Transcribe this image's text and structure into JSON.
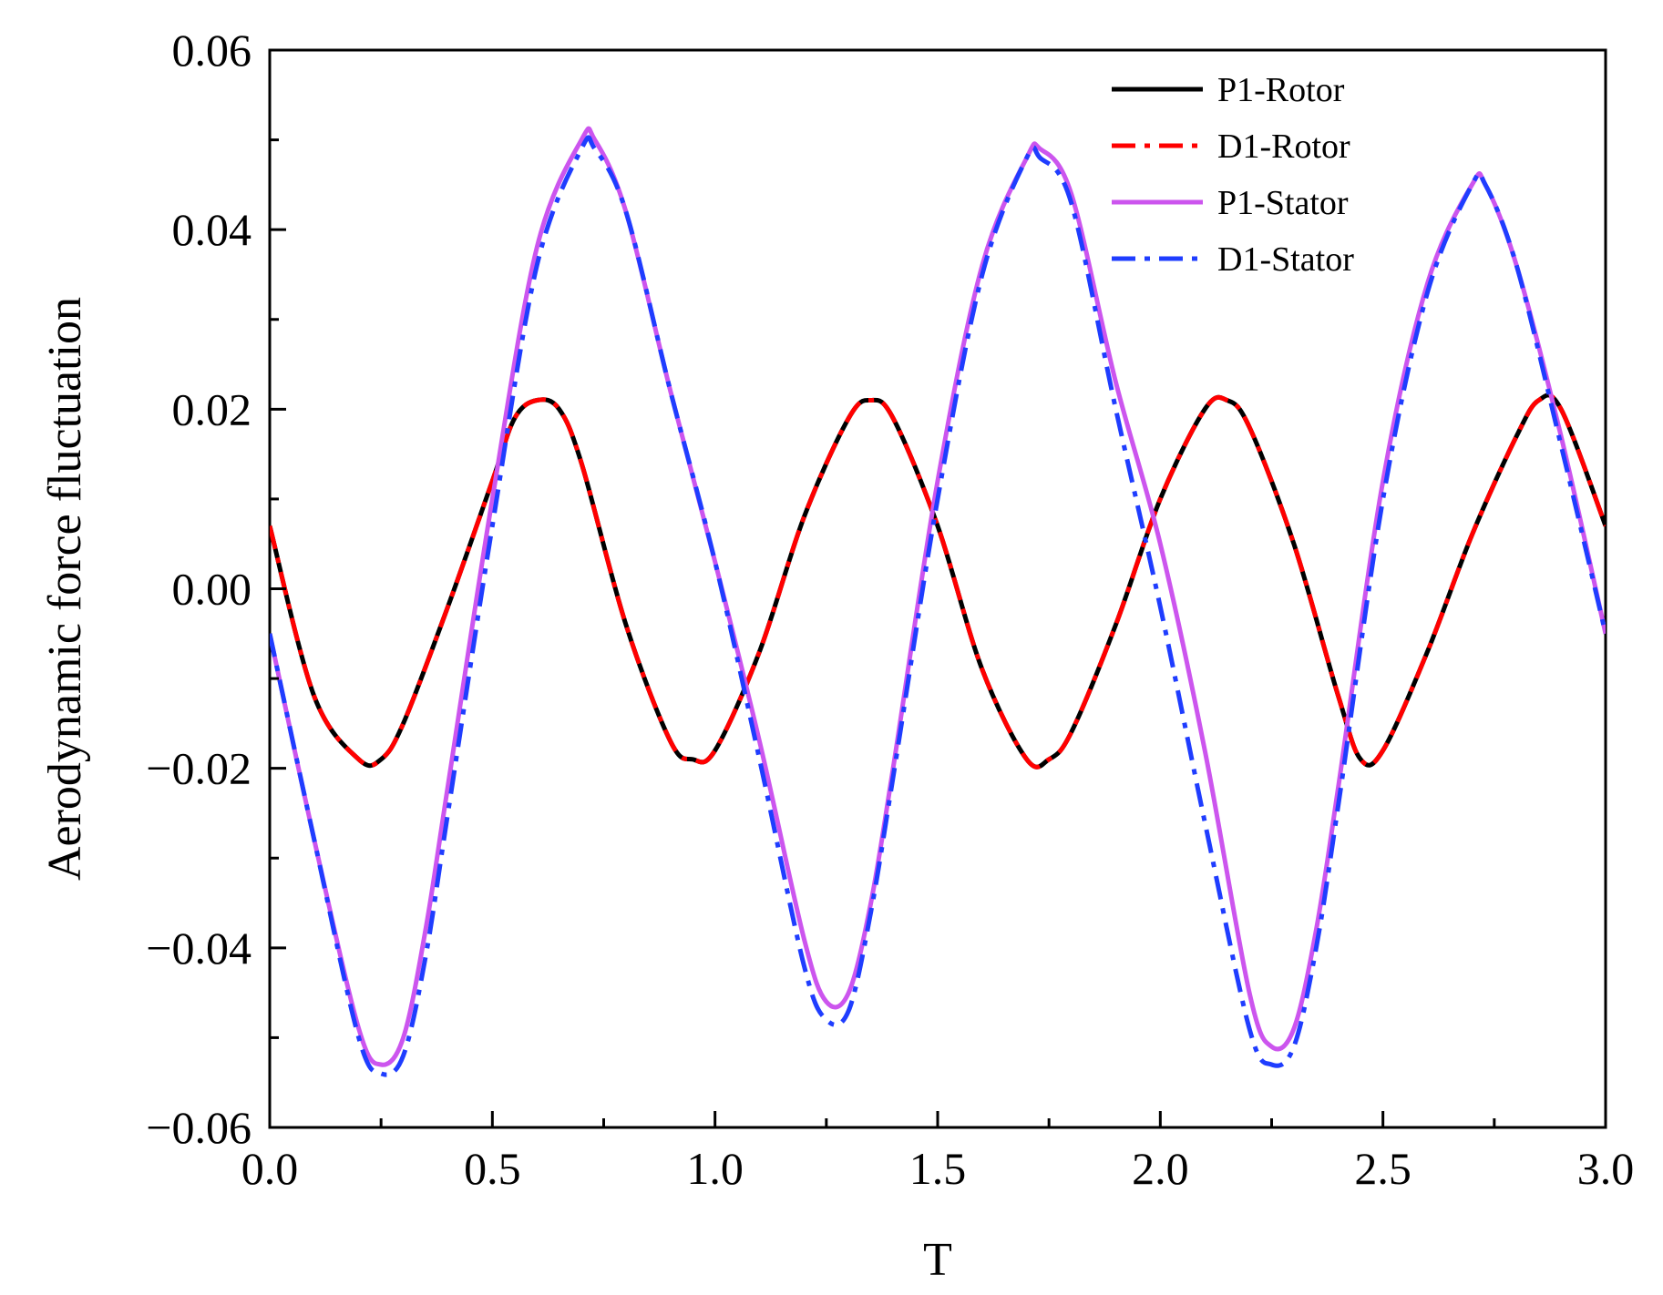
{
  "chart_data": {
    "type": "line",
    "title": "",
    "xlabel": "T",
    "ylabel": "Aerodynamic force fluctuation",
    "xlim": [
      0,
      3.0
    ],
    "ylim": [
      -0.06,
      0.06
    ],
    "x_ticks": [
      0.0,
      0.5,
      1.0,
      1.5,
      2.0,
      2.5,
      3.0
    ],
    "x_tick_labels": [
      "0.0",
      "0.5",
      "1.0",
      "1.5",
      "2.0",
      "2.5",
      "3.0"
    ],
    "y_ticks": [
      -0.06,
      -0.04,
      -0.02,
      0.0,
      0.02,
      0.04,
      0.06
    ],
    "y_tick_labels": [
      "−0.06",
      "−0.04",
      "−0.02",
      "0.00",
      "0.02",
      "0.04",
      "0.06"
    ],
    "grid": false,
    "legend_position": "top-right",
    "series": [
      {
        "name": "P1-Rotor",
        "color": "#000000",
        "style": "solid",
        "x": [
          0.0,
          0.1,
          0.2,
          0.25,
          0.3,
          0.4,
          0.5,
          0.55,
          0.6,
          0.65,
          0.7,
          0.8,
          0.9,
          0.95,
          1.0,
          1.1,
          1.2,
          1.3,
          1.35,
          1.4,
          1.5,
          1.6,
          1.7,
          1.75,
          1.8,
          1.9,
          2.0,
          2.1,
          2.15,
          2.2,
          2.3,
          2.4,
          2.45,
          2.5,
          2.6,
          2.7,
          2.8,
          2.85,
          2.9,
          3.0
        ],
        "y": [
          0.007,
          -0.012,
          -0.019,
          -0.019,
          -0.015,
          -0.002,
          0.012,
          0.019,
          0.021,
          0.02,
          0.014,
          -0.004,
          -0.017,
          -0.019,
          -0.018,
          -0.007,
          0.008,
          0.019,
          0.021,
          0.019,
          0.007,
          -0.009,
          -0.019,
          -0.019,
          -0.016,
          -0.004,
          0.01,
          0.02,
          0.021,
          0.018,
          0.005,
          -0.012,
          -0.019,
          -0.018,
          -0.007,
          0.006,
          0.017,
          0.021,
          0.02,
          0.007
        ]
      },
      {
        "name": "D1-Rotor",
        "color": "#ff0000",
        "style": "dashdot",
        "x": [
          0.0,
          0.1,
          0.2,
          0.25,
          0.3,
          0.4,
          0.5,
          0.55,
          0.6,
          0.65,
          0.7,
          0.8,
          0.9,
          0.95,
          1.0,
          1.1,
          1.2,
          1.3,
          1.35,
          1.4,
          1.5,
          1.6,
          1.7,
          1.75,
          1.8,
          1.9,
          2.0,
          2.1,
          2.15,
          2.2,
          2.3,
          2.4,
          2.45,
          2.5,
          2.6,
          2.7,
          2.8,
          2.85,
          2.9,
          3.0
        ],
        "y": [
          0.007,
          -0.012,
          -0.019,
          -0.019,
          -0.015,
          -0.002,
          0.012,
          0.019,
          0.021,
          0.02,
          0.014,
          -0.004,
          -0.017,
          -0.019,
          -0.018,
          -0.007,
          0.008,
          0.019,
          0.021,
          0.019,
          0.007,
          -0.009,
          -0.019,
          -0.019,
          -0.016,
          -0.004,
          0.01,
          0.02,
          0.021,
          0.018,
          0.005,
          -0.012,
          -0.019,
          -0.018,
          -0.007,
          0.006,
          0.017,
          0.021,
          0.02,
          0.007
        ]
      },
      {
        "name": "P1-Stator",
        "color": "#cc55ee",
        "style": "solid",
        "x": [
          0.0,
          0.1,
          0.2,
          0.25,
          0.3,
          0.35,
          0.4,
          0.5,
          0.6,
          0.7,
          0.73,
          0.8,
          0.9,
          1.0,
          1.1,
          1.2,
          1.25,
          1.3,
          1.35,
          1.4,
          1.5,
          1.6,
          1.7,
          1.73,
          1.8,
          1.9,
          2.0,
          2.1,
          2.2,
          2.25,
          2.3,
          2.35,
          2.4,
          2.5,
          2.6,
          2.7,
          2.73,
          2.8,
          2.9,
          3.0
        ],
        "y": [
          -0.005,
          -0.028,
          -0.049,
          -0.053,
          -0.05,
          -0.038,
          -0.022,
          0.01,
          0.038,
          0.05,
          0.05,
          0.042,
          0.022,
          0.003,
          -0.017,
          -0.039,
          -0.046,
          -0.045,
          -0.035,
          -0.02,
          0.012,
          0.036,
          0.048,
          0.049,
          0.044,
          0.023,
          0.005,
          -0.018,
          -0.045,
          -0.051,
          -0.049,
          -0.038,
          -0.022,
          0.012,
          0.034,
          0.045,
          0.045,
          0.036,
          0.017,
          -0.005
        ]
      },
      {
        "name": "D1-Stator",
        "color": "#1f3dff",
        "style": "dashdot",
        "x": [
          0.0,
          0.1,
          0.2,
          0.25,
          0.3,
          0.35,
          0.4,
          0.5,
          0.6,
          0.7,
          0.73,
          0.8,
          0.9,
          1.0,
          1.1,
          1.2,
          1.25,
          1.3,
          1.35,
          1.4,
          1.5,
          1.6,
          1.7,
          1.73,
          1.8,
          1.9,
          2.0,
          2.1,
          2.2,
          2.25,
          2.3,
          2.35,
          2.4,
          2.5,
          2.6,
          2.7,
          2.73,
          2.8,
          2.9,
          3.0
        ],
        "y": [
          -0.005,
          -0.028,
          -0.05,
          -0.054,
          -0.052,
          -0.041,
          -0.025,
          0.007,
          0.036,
          0.049,
          0.049,
          0.042,
          0.022,
          0.003,
          -0.019,
          -0.042,
          -0.048,
          -0.047,
          -0.036,
          -0.021,
          0.01,
          0.035,
          0.048,
          0.048,
          0.043,
          0.02,
          -0.002,
          -0.026,
          -0.049,
          -0.053,
          -0.051,
          -0.04,
          -0.024,
          0.01,
          0.033,
          0.045,
          0.045,
          0.036,
          0.016,
          -0.005
        ]
      }
    ]
  }
}
